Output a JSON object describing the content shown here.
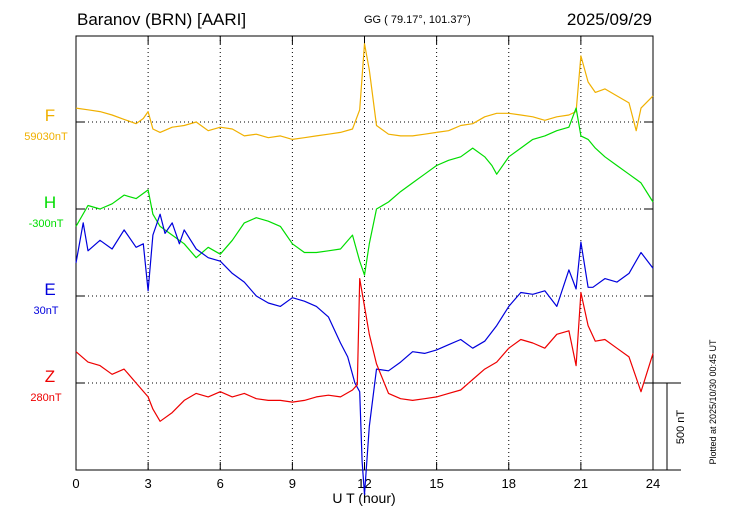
{
  "header": {
    "title": "Baranov (BRN)  [AARI]",
    "coords": "GG ( 79.17°, 101.37°)",
    "date": "2025/09/29"
  },
  "footer": {
    "plotted": "Plotted at 2025/10/30 00:45 UT"
  },
  "chart_data": {
    "type": "line",
    "xlabel": "U T (hour)",
    "x_ticks": [
      0,
      3,
      6,
      9,
      12,
      15,
      18,
      21,
      24
    ],
    "xlim": [
      0,
      24
    ],
    "grid": true,
    "scale_bar": "500 nT",
    "series": [
      {
        "name": "F",
        "baseline": "59030nT",
        "color": "#f0b000",
        "x": [
          0,
          0.5,
          1,
          1.5,
          2,
          2.5,
          2.8,
          3.0,
          3.2,
          3.5,
          4,
          4.5,
          5,
          5.5,
          6,
          6.5,
          7,
          7.5,
          8,
          8.5,
          9,
          9.5,
          10,
          10.5,
          11,
          11.5,
          11.8,
          12.0,
          12.2,
          12.5,
          13,
          13.5,
          14,
          14.5,
          15,
          15.5,
          16,
          16.5,
          17,
          17.5,
          18,
          18.5,
          19,
          19.5,
          20,
          20.5,
          20.8,
          21.0,
          21.3,
          21.6,
          22,
          22.5,
          23,
          23.3,
          23.5,
          24
        ],
        "values": [
          80,
          70,
          60,
          40,
          15,
          -10,
          20,
          60,
          -40,
          -60,
          -30,
          -20,
          0,
          -50,
          -30,
          -40,
          -80,
          -70,
          -90,
          -80,
          -100,
          -90,
          -80,
          -70,
          -60,
          -40,
          70,
          450,
          300,
          -20,
          -70,
          -80,
          -80,
          -70,
          -60,
          -50,
          -20,
          -10,
          30,
          50,
          50,
          40,
          30,
          10,
          30,
          40,
          60,
          380,
          230,
          170,
          190,
          150,
          110,
          -50,
          80,
          150
        ]
      },
      {
        "name": "H",
        "baseline": "-300nT",
        "color": "#00dd00",
        "x": [
          0,
          0.5,
          1,
          1.5,
          2,
          2.5,
          3.0,
          3.2,
          3.5,
          4,
          4.5,
          5,
          5.5,
          6,
          6.5,
          7,
          7.5,
          8,
          8.5,
          9,
          9.5,
          10,
          10.5,
          11,
          11.5,
          11.8,
          12.0,
          12.2,
          12.5,
          13,
          13.5,
          14,
          14.5,
          15,
          15.5,
          16,
          16.5,
          17,
          17.3,
          17.5,
          18,
          18.5,
          19,
          19.5,
          20,
          20.5,
          20.8,
          21.0,
          21.3,
          21.6,
          22,
          22.5,
          23,
          23.5,
          24
        ],
        "values": [
          -100,
          20,
          0,
          30,
          80,
          60,
          110,
          -30,
          -100,
          -150,
          -200,
          -280,
          -220,
          -260,
          -180,
          -80,
          -50,
          -70,
          -100,
          -200,
          -250,
          -250,
          -240,
          -230,
          -150,
          -300,
          -380,
          -200,
          0,
          40,
          100,
          150,
          200,
          250,
          280,
          300,
          350,
          300,
          250,
          200,
          300,
          350,
          400,
          420,
          450,
          470,
          580,
          420,
          400,
          350,
          300,
          250,
          200,
          150,
          40
        ]
      },
      {
        "name": "E",
        "baseline": "30nT",
        "color": "#0000dd",
        "x": [
          0,
          0.3,
          0.5,
          1,
          1.5,
          2,
          2.5,
          2.8,
          3.0,
          3.2,
          3.5,
          3.7,
          4,
          4.3,
          4.5,
          5,
          5.5,
          6,
          6.5,
          7,
          7.5,
          8,
          8.5,
          9,
          9.5,
          10,
          10.5,
          11,
          11.3,
          11.6,
          11.8,
          11.9,
          12.0,
          12.2,
          12.5,
          13,
          13.5,
          14,
          14.5,
          15,
          15.5,
          16,
          16.5,
          17,
          17.5,
          18,
          18.5,
          19,
          19.5,
          20,
          20.5,
          20.8,
          21.0,
          21.3,
          21.5,
          22,
          22.5,
          23,
          23.5,
          24
        ],
        "values": [
          190,
          420,
          260,
          320,
          270,
          380,
          280,
          300,
          30,
          350,
          470,
          360,
          420,
          300,
          380,
          270,
          220,
          200,
          130,
          80,
          0,
          -40,
          -60,
          -10,
          -30,
          -60,
          -120,
          -270,
          -350,
          -500,
          -550,
          -950,
          -1140,
          -750,
          -420,
          -430,
          -380,
          -320,
          -330,
          -310,
          -280,
          -250,
          -300,
          -260,
          -170,
          -60,
          20,
          10,
          30,
          -60,
          150,
          40,
          310,
          50,
          50,
          100,
          80,
          130,
          250,
          160
        ]
      },
      {
        "name": "Z",
        "baseline": "280nT",
        "color": "#ee0000",
        "x": [
          0,
          0.5,
          1,
          1.5,
          2,
          2.5,
          3.0,
          3.2,
          3.5,
          4,
          4.5,
          5,
          5.5,
          6,
          6.5,
          7,
          7.5,
          8,
          8.5,
          9,
          9.5,
          10,
          10.5,
          11,
          11.5,
          11.7,
          11.8,
          12.0,
          12.2,
          12.5,
          13,
          13.5,
          14,
          14.5,
          15,
          15.5,
          16,
          16.5,
          17,
          17.5,
          18,
          18.5,
          19,
          19.5,
          20,
          20.5,
          20.8,
          21.0,
          21.3,
          21.6,
          22,
          22.5,
          23,
          23.5,
          24
        ],
        "values": [
          180,
          120,
          100,
          50,
          80,
          0,
          -80,
          -150,
          -220,
          -170,
          -100,
          -60,
          -80,
          -50,
          -80,
          -60,
          -90,
          -100,
          -100,
          -110,
          -100,
          -80,
          -70,
          -80,
          -40,
          -10,
          600,
          440,
          280,
          110,
          -60,
          -90,
          -100,
          -90,
          -80,
          -60,
          -40,
          20,
          80,
          120,
          200,
          250,
          230,
          200,
          280,
          300,
          100,
          520,
          330,
          240,
          250,
          200,
          150,
          -50,
          170
        ]
      }
    ]
  }
}
